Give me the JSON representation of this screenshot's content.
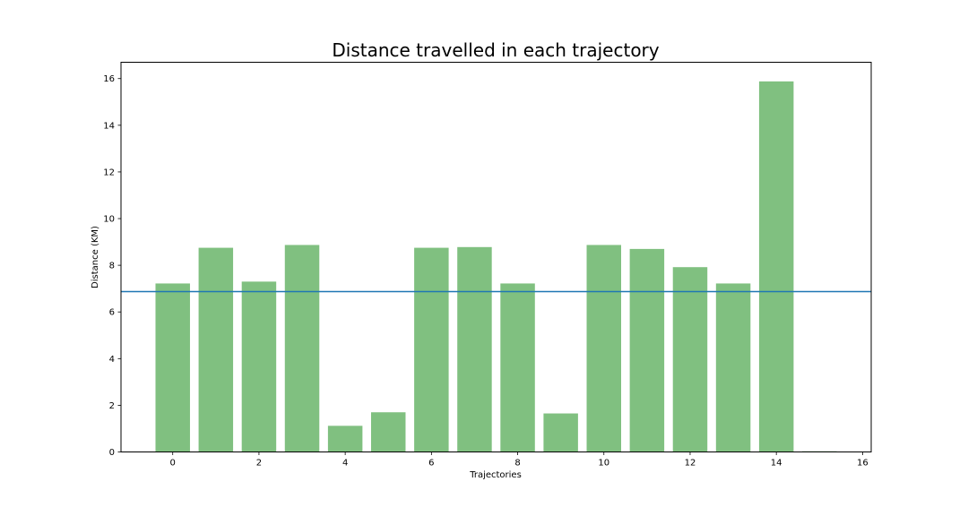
{
  "chart_data": {
    "type": "bar",
    "title": "Distance travelled in each trajectory",
    "xlabel": "Trajectories",
    "ylabel": "Distance (KM)",
    "x": [
      0,
      1,
      2,
      3,
      4,
      5,
      6,
      7,
      8,
      9,
      10,
      11,
      12,
      13,
      14,
      15
    ],
    "values": [
      7.22,
      8.75,
      7.3,
      8.87,
      1.12,
      1.7,
      8.75,
      8.78,
      7.22,
      1.65,
      8.87,
      8.7,
      7.92,
      7.22,
      15.88,
      0.03
    ],
    "bar_color": "#80c080",
    "reference_line": {
      "value": 6.87,
      "color": "#1f77b4"
    },
    "xlim": [
      -1.2,
      16.2
    ],
    "ylim": [
      0,
      16.7
    ],
    "xticks": [
      "0",
      "2",
      "4",
      "6",
      "8",
      "10",
      "12",
      "14",
      "16"
    ],
    "yticks": [
      "0",
      "2",
      "4",
      "6",
      "8",
      "10",
      "12",
      "14",
      "16"
    ],
    "grid": false,
    "legend": false
  }
}
